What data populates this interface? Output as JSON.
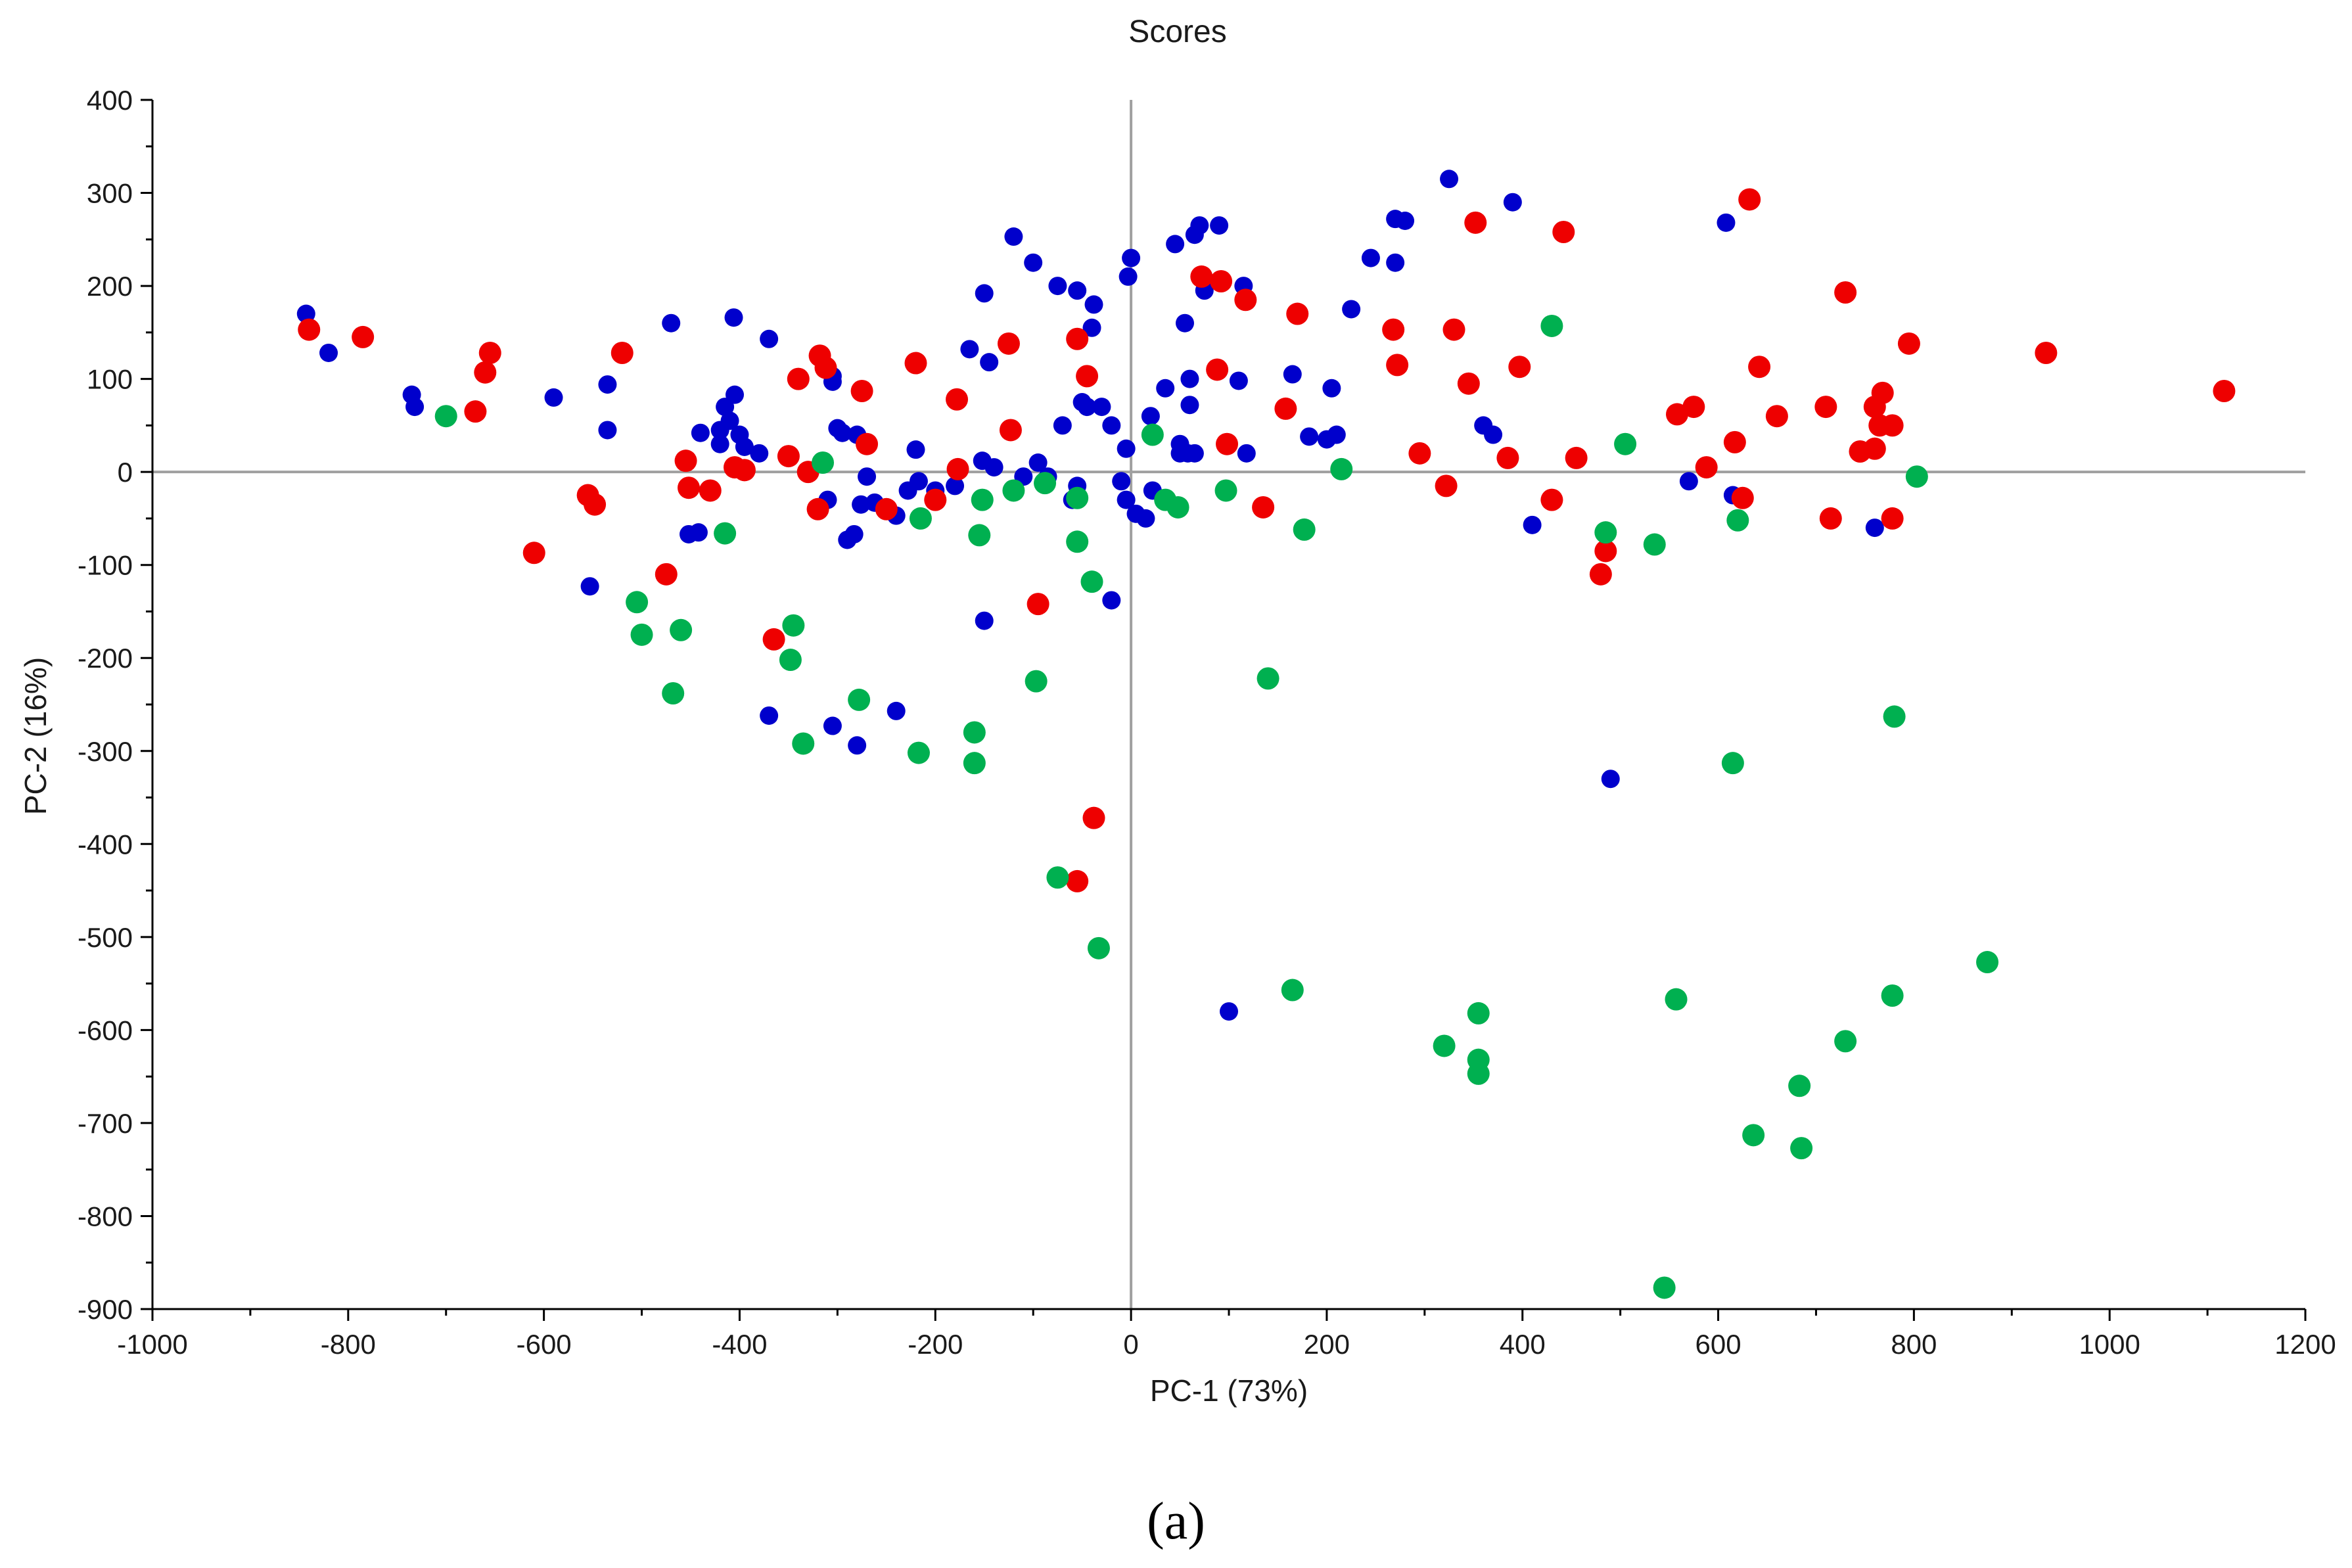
{
  "chart_data": {
    "type": "scatter",
    "title": "Scores",
    "xlabel": "PC-1 (73%)",
    "ylabel": "PC-2 (16%)",
    "xlim": [
      -1000,
      1200
    ],
    "ylim": [
      -900,
      400
    ],
    "xticks": [
      -1000,
      -800,
      -600,
      -400,
      -200,
      0,
      200,
      400,
      600,
      800,
      1000,
      1200
    ],
    "yticks": [
      400,
      300,
      200,
      100,
      0,
      -100,
      -200,
      -300,
      -400,
      -500,
      -600,
      -700,
      -800,
      -900
    ],
    "reference_lines": {
      "x": 0,
      "y": 0
    },
    "grid": false,
    "legend": "none",
    "series": [
      {
        "color": "#0000cc",
        "marker_size": "small",
        "points": [
          [
            -843,
            170
          ],
          [
            -820,
            128
          ],
          [
            -735,
            83
          ],
          [
            -732,
            70
          ],
          [
            -590,
            80
          ],
          [
            -535,
            94
          ],
          [
            -535,
            45
          ],
          [
            -470,
            160
          ],
          [
            -553,
            -123
          ],
          [
            -406,
            166
          ],
          [
            -405,
            83
          ],
          [
            -415,
            70
          ],
          [
            -410,
            55
          ],
          [
            -400,
            40
          ],
          [
            -395,
            27
          ],
          [
            -420,
            45
          ],
          [
            -420,
            30
          ],
          [
            -380,
            20
          ],
          [
            -370,
            143
          ],
          [
            -440,
            42
          ],
          [
            -452,
            -67
          ],
          [
            -442,
            -65
          ],
          [
            -300,
            47
          ],
          [
            -295,
            42
          ],
          [
            -280,
            40
          ],
          [
            -305,
            103
          ],
          [
            -305,
            97
          ],
          [
            -290,
            -73
          ],
          [
            -283,
            -67
          ],
          [
            -276,
            -35
          ],
          [
            -270,
            -5
          ],
          [
            -310,
            -30
          ],
          [
            -262,
            -33
          ],
          [
            -240,
            -47
          ],
          [
            -228,
            -20
          ],
          [
            -220,
            24
          ],
          [
            -217,
            -10
          ],
          [
            -200,
            -20
          ],
          [
            -180,
            -15
          ],
          [
            -165,
            132
          ],
          [
            -150,
            192
          ],
          [
            -145,
            118
          ],
          [
            -152,
            12
          ],
          [
            -140,
            5
          ],
          [
            -120,
            253
          ],
          [
            -110,
            -5
          ],
          [
            -100,
            225
          ],
          [
            -75,
            200
          ],
          [
            -70,
            50
          ],
          [
            -55,
            195
          ],
          [
            -50,
            75
          ],
          [
            -45,
            70
          ],
          [
            -55,
            -15
          ],
          [
            -60,
            -30
          ],
          [
            -40,
            155
          ],
          [
            -38,
            180
          ],
          [
            -30,
            70
          ],
          [
            -20,
            50
          ],
          [
            -10,
            -10
          ],
          [
            -5,
            25
          ],
          [
            -3,
            210
          ],
          [
            0,
            230
          ],
          [
            -5,
            -30
          ],
          [
            5,
            -45
          ],
          [
            15,
            -50
          ],
          [
            20,
            60
          ],
          [
            22,
            -20
          ],
          [
            35,
            90
          ],
          [
            45,
            245
          ],
          [
            50,
            30
          ],
          [
            50,
            20
          ],
          [
            55,
            160
          ],
          [
            58,
            20
          ],
          [
            60,
            100
          ],
          [
            60,
            72
          ],
          [
            65,
            255
          ],
          [
            65,
            20
          ],
          [
            70,
            265
          ],
          [
            75,
            195
          ],
          [
            90,
            265
          ],
          [
            115,
            200
          ],
          [
            118,
            20
          ],
          [
            110,
            98
          ],
          [
            165,
            105
          ],
          [
            182,
            38
          ],
          [
            200,
            35
          ],
          [
            205,
            90
          ],
          [
            210,
            40
          ],
          [
            225,
            175
          ],
          [
            245,
            230
          ],
          [
            270,
            225
          ],
          [
            270,
            272
          ],
          [
            280,
            270
          ],
          [
            325,
            315
          ],
          [
            360,
            50
          ],
          [
            370,
            40
          ],
          [
            390,
            290
          ],
          [
            410,
            -57
          ],
          [
            490,
            -330
          ],
          [
            570,
            -10
          ],
          [
            608,
            268
          ],
          [
            615,
            -25
          ],
          [
            760,
            -60
          ],
          [
            100,
            -580
          ],
          [
            -150,
            -160
          ],
          [
            -20,
            -138
          ],
          [
            -370,
            -262
          ],
          [
            -305,
            -273
          ],
          [
            -280,
            -294
          ],
          [
            -240,
            -257
          ],
          [
            -85,
            -5
          ],
          [
            -95,
            10
          ]
        ]
      },
      {
        "color": "#ee0000",
        "marker_size": "large",
        "points": [
          [
            -840,
            153
          ],
          [
            -785,
            145
          ],
          [
            -655,
            128
          ],
          [
            -660,
            107
          ],
          [
            -670,
            65
          ],
          [
            -555,
            -25
          ],
          [
            -548,
            -35
          ],
          [
            -610,
            -87
          ],
          [
            -520,
            128
          ],
          [
            -475,
            -110
          ],
          [
            -455,
            12
          ],
          [
            -452,
            -17
          ],
          [
            -430,
            -20
          ],
          [
            -405,
            5
          ],
          [
            -395,
            2
          ],
          [
            -365,
            -180
          ],
          [
            -350,
            17
          ],
          [
            -340,
            100
          ],
          [
            -330,
            0
          ],
          [
            -320,
            -40
          ],
          [
            -318,
            125
          ],
          [
            -312,
            112
          ],
          [
            -275,
            87
          ],
          [
            -270,
            30
          ],
          [
            -250,
            -40
          ],
          [
            -220,
            117
          ],
          [
            -200,
            -30
          ],
          [
            -178,
            78
          ],
          [
            -177,
            3
          ],
          [
            -125,
            138
          ],
          [
            -123,
            45
          ],
          [
            -95,
            -142
          ],
          [
            -55,
            143
          ],
          [
            -45,
            103
          ],
          [
            -38,
            -372
          ],
          [
            -55,
            -440
          ],
          [
            72,
            210
          ],
          [
            88,
            110
          ],
          [
            92,
            205
          ],
          [
            98,
            30
          ],
          [
            117,
            185
          ],
          [
            135,
            -38
          ],
          [
            158,
            68
          ],
          [
            170,
            170
          ],
          [
            268,
            153
          ],
          [
            272,
            115
          ],
          [
            295,
            20
          ],
          [
            322,
            -15
          ],
          [
            330,
            153
          ],
          [
            345,
            95
          ],
          [
            352,
            268
          ],
          [
            385,
            15
          ],
          [
            397,
            113
          ],
          [
            430,
            -30
          ],
          [
            442,
            258
          ],
          [
            455,
            15
          ],
          [
            480,
            -110
          ],
          [
            485,
            -85
          ],
          [
            558,
            62
          ],
          [
            575,
            70
          ],
          [
            588,
            5
          ],
          [
            617,
            32
          ],
          [
            625,
            -28
          ],
          [
            632,
            293
          ],
          [
            642,
            113
          ],
          [
            660,
            60
          ],
          [
            710,
            70
          ],
          [
            715,
            -50
          ],
          [
            730,
            193
          ],
          [
            745,
            22
          ],
          [
            760,
            70
          ],
          [
            760,
            25
          ],
          [
            765,
            50
          ],
          [
            768,
            85
          ],
          [
            778,
            50
          ],
          [
            778,
            -50
          ],
          [
            795,
            138
          ],
          [
            935,
            128
          ],
          [
            1117,
            87
          ]
        ]
      },
      {
        "color": "#00b050",
        "marker_size": "large",
        "points": [
          [
            -700,
            60
          ],
          [
            -505,
            -140
          ],
          [
            -500,
            -175
          ],
          [
            -460,
            -170
          ],
          [
            -468,
            -238
          ],
          [
            -415,
            -66
          ],
          [
            -345,
            -165
          ],
          [
            -348,
            -202
          ],
          [
            -335,
            -292
          ],
          [
            -315,
            10
          ],
          [
            -278,
            -245
          ],
          [
            -215,
            -50
          ],
          [
            -217,
            -302
          ],
          [
            -160,
            -280
          ],
          [
            -160,
            -313
          ],
          [
            -152,
            -30
          ],
          [
            -155,
            -68
          ],
          [
            -120,
            -20
          ],
          [
            -97,
            -225
          ],
          [
            -88,
            -12
          ],
          [
            -75,
            -436
          ],
          [
            -55,
            -28
          ],
          [
            -55,
            -75
          ],
          [
            -40,
            -118
          ],
          [
            -33,
            -512
          ],
          [
            22,
            40
          ],
          [
            35,
            -30
          ],
          [
            48,
            -38
          ],
          [
            97,
            -20
          ],
          [
            140,
            -222
          ],
          [
            165,
            -557
          ],
          [
            177,
            -62
          ],
          [
            215,
            3
          ],
          [
            320,
            -617
          ],
          [
            355,
            -582
          ],
          [
            355,
            -632
          ],
          [
            355,
            -647
          ],
          [
            430,
            157
          ],
          [
            485,
            -65
          ],
          [
            505,
            30
          ],
          [
            535,
            -78
          ],
          [
            545,
            -877
          ],
          [
            557,
            -567
          ],
          [
            615,
            -313
          ],
          [
            620,
            -52
          ],
          [
            636,
            -713
          ],
          [
            683,
            -660
          ],
          [
            685,
            -727
          ],
          [
            730,
            -612
          ],
          [
            778,
            -563
          ],
          [
            780,
            -263
          ],
          [
            803,
            -5
          ],
          [
            875,
            -527
          ]
        ]
      }
    ]
  },
  "caption": "(a)"
}
